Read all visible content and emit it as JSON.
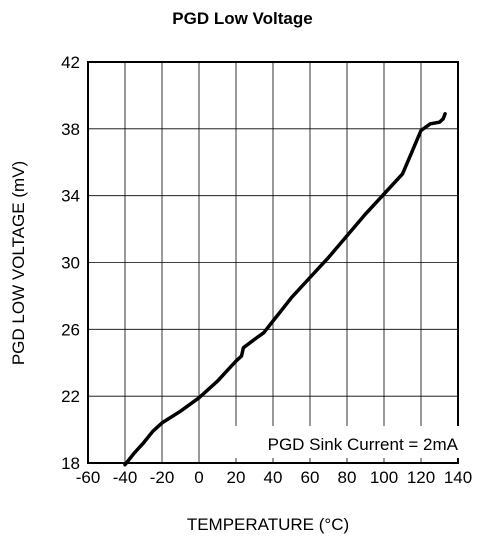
{
  "chart_data": {
    "type": "line",
    "title": "PGD Low Voltage",
    "xlabel": "TEMPERATURE (°C)",
    "ylabel": "PGD LOW VOLTAGE (mV)",
    "xlim": [
      -60,
      140
    ],
    "ylim": [
      18,
      42
    ],
    "xticks": [
      -60,
      -40,
      -20,
      0,
      20,
      40,
      60,
      80,
      100,
      120,
      140
    ],
    "yticks": [
      18,
      22,
      26,
      30,
      34,
      38,
      42
    ],
    "grid": true,
    "annotation": "PGD Sink Current = 2mA",
    "series": [
      {
        "x": [
          -40,
          -35,
          -30,
          -25,
          -20,
          -10,
          0,
          10,
          20,
          23,
          24,
          30,
          35,
          40,
          45,
          50,
          60,
          70,
          80,
          90,
          100,
          110,
          115,
          120,
          125,
          130,
          132,
          133
        ],
        "y": [
          17.9,
          18.6,
          19.2,
          19.9,
          20.4,
          21.1,
          21.9,
          22.9,
          24.1,
          24.4,
          24.9,
          25.4,
          25.8,
          26.5,
          27.2,
          27.9,
          29.1,
          30.3,
          31.6,
          32.9,
          34.1,
          35.3,
          36.6,
          37.9,
          38.3,
          38.4,
          38.6,
          38.9
        ]
      }
    ],
    "line_color": "#000000",
    "grid_color": "#000000"
  }
}
